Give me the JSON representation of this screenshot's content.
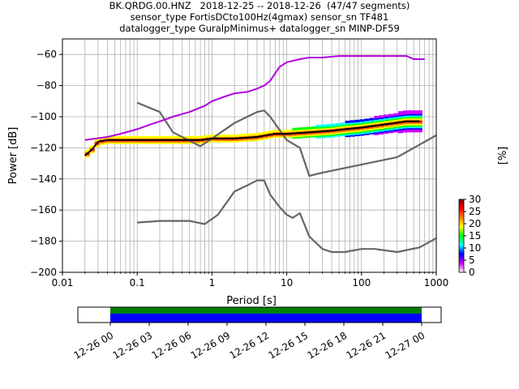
{
  "window": {
    "title_lines": [
      "BK.QRDG.00.HNZ   2018-12-25 -- 2018-12-26  (47/47 segments)",
      "sensor_type FortisDCto100Hz(4gmax) sensor_sn TF481",
      "datalogger_type GuralpMinimus+ datalogger_sn MINP-DF59"
    ]
  },
  "chart_data": [
    {
      "type": "heatmap",
      "title": "BK.QRDG.00.HNZ   2018-12-25 -- 2018-12-26  (47/47 segments)",
      "subtitle": [
        "sensor_type FortisDCto100Hz(4gmax) sensor_sn TF481",
        "datalogger_type GuralpMinimus+ datalogger_sn MINP-DF59"
      ],
      "xlabel": "Period [s]",
      "ylabel": "Power [dB]",
      "xscale": "log",
      "xlim": [
        0.01,
        1000
      ],
      "ylim": [
        -200,
        -50
      ],
      "xticks": [
        "0.01",
        "0.1",
        "1",
        "10",
        "100",
        "1000"
      ],
      "yticks": [
        "−60",
        "−80",
        "−100",
        "−120",
        "−140",
        "−160",
        "−180",
        "−200"
      ],
      "ytick_values": [
        -60,
        -80,
        -100,
        -120,
        -140,
        -160,
        -180,
        -200
      ],
      "grid": true,
      "colorbar": {
        "label": "[%]",
        "ticks": [
          "30",
          "25",
          "20",
          "15",
          "10",
          "5",
          "0"
        ],
        "range": [
          0,
          30
        ],
        "colors": [
          "#ffffff",
          "#cc00ff",
          "#0000ff",
          "#00ffff",
          "#00ff00",
          "#ffff00",
          "#ff8000",
          "#ff0000",
          "#800000"
        ]
      },
      "series": [
        {
          "name": "",
          "role": "median",
          "color": "#000000",
          "x": [
            0.02,
            0.025,
            0.03,
            0.04,
            0.06,
            0.1,
            0.2,
            0.4,
            0.7,
            1,
            2,
            4,
            7,
            10,
            20,
            40,
            60,
            100,
            200,
            400,
            600
          ],
          "y": [
            -125,
            -121,
            -116,
            -115,
            -115,
            -115,
            -115,
            -115,
            -115,
            -114,
            -114,
            -113,
            -111,
            -111,
            -110,
            -109,
            -108,
            -107,
            -105,
            -103,
            -103
          ]
        },
        {
          "name": "",
          "role": "mode-upper-trace",
          "color": "#b000e0",
          "x": [
            0.02,
            0.04,
            0.06,
            0.1,
            0.15,
            0.2,
            0.3,
            0.5,
            0.8,
            1,
            1.5,
            2,
            3,
            4,
            5,
            6,
            8,
            10,
            15,
            20,
            30,
            50,
            100,
            200,
            400,
            500,
            700
          ],
          "y": [
            -115,
            -113,
            -111,
            -108,
            -105,
            -103,
            -100,
            -97,
            -93,
            -90,
            -87,
            -85,
            -84,
            -82,
            -80,
            -77,
            -68,
            -65,
            -63,
            -62,
            -62,
            -61,
            -61,
            -61,
            -61,
            -63,
            -63
          ]
        },
        {
          "name": "",
          "role": "NHNM-acceleration",
          "color": "#666666",
          "x": [
            0.1,
            0.2,
            0.3,
            0.7,
            1,
            2,
            4,
            5,
            6,
            10,
            15,
            20,
            30,
            300,
            1000
          ],
          "y": [
            -91,
            -97,
            -110,
            -119,
            -114,
            -104,
            -97,
            -96,
            -100,
            -115,
            -120,
            -138,
            -136,
            -126,
            -112
          ]
        },
        {
          "name": "",
          "role": "NLNM-acceleration",
          "color": "#666666",
          "x": [
            0.1,
            0.2,
            0.5,
            0.8,
            1.2,
            2,
            3,
            4,
            5,
            6,
            8,
            10,
            12,
            15,
            20,
            30,
            40,
            60,
            100,
            150,
            300,
            600,
            1000
          ],
          "y": [
            -168,
            -167,
            -167,
            -169,
            -163,
            -148,
            -144,
            -141,
            -141,
            -150,
            -158,
            -163,
            -165,
            -162,
            -177,
            -185,
            -187,
            -187,
            -185,
            -185,
            -187,
            -184,
            -178
          ]
        }
      ]
    },
    {
      "type": "bar",
      "xlabel": "",
      "ylabel": "",
      "x_tick_labels": [
        "12-26 00",
        "12-26 03",
        "12-26 06",
        "12-26 09",
        "12-26 12",
        "12-26 15",
        "12-26 18",
        "12-26 21",
        "12-27 00"
      ],
      "xlim": [
        "12-25 21:30",
        "12-27 01:30"
      ],
      "series": [
        {
          "name": "",
          "role": "data-coverage",
          "color": "#0000ff",
          "x": [
            "12-26 00",
            "12-27 00"
          ]
        },
        {
          "name": "",
          "role": "psd-coverage",
          "color": "#008000",
          "x": [
            "12-26 00",
            "12-27 00"
          ]
        }
      ]
    }
  ]
}
